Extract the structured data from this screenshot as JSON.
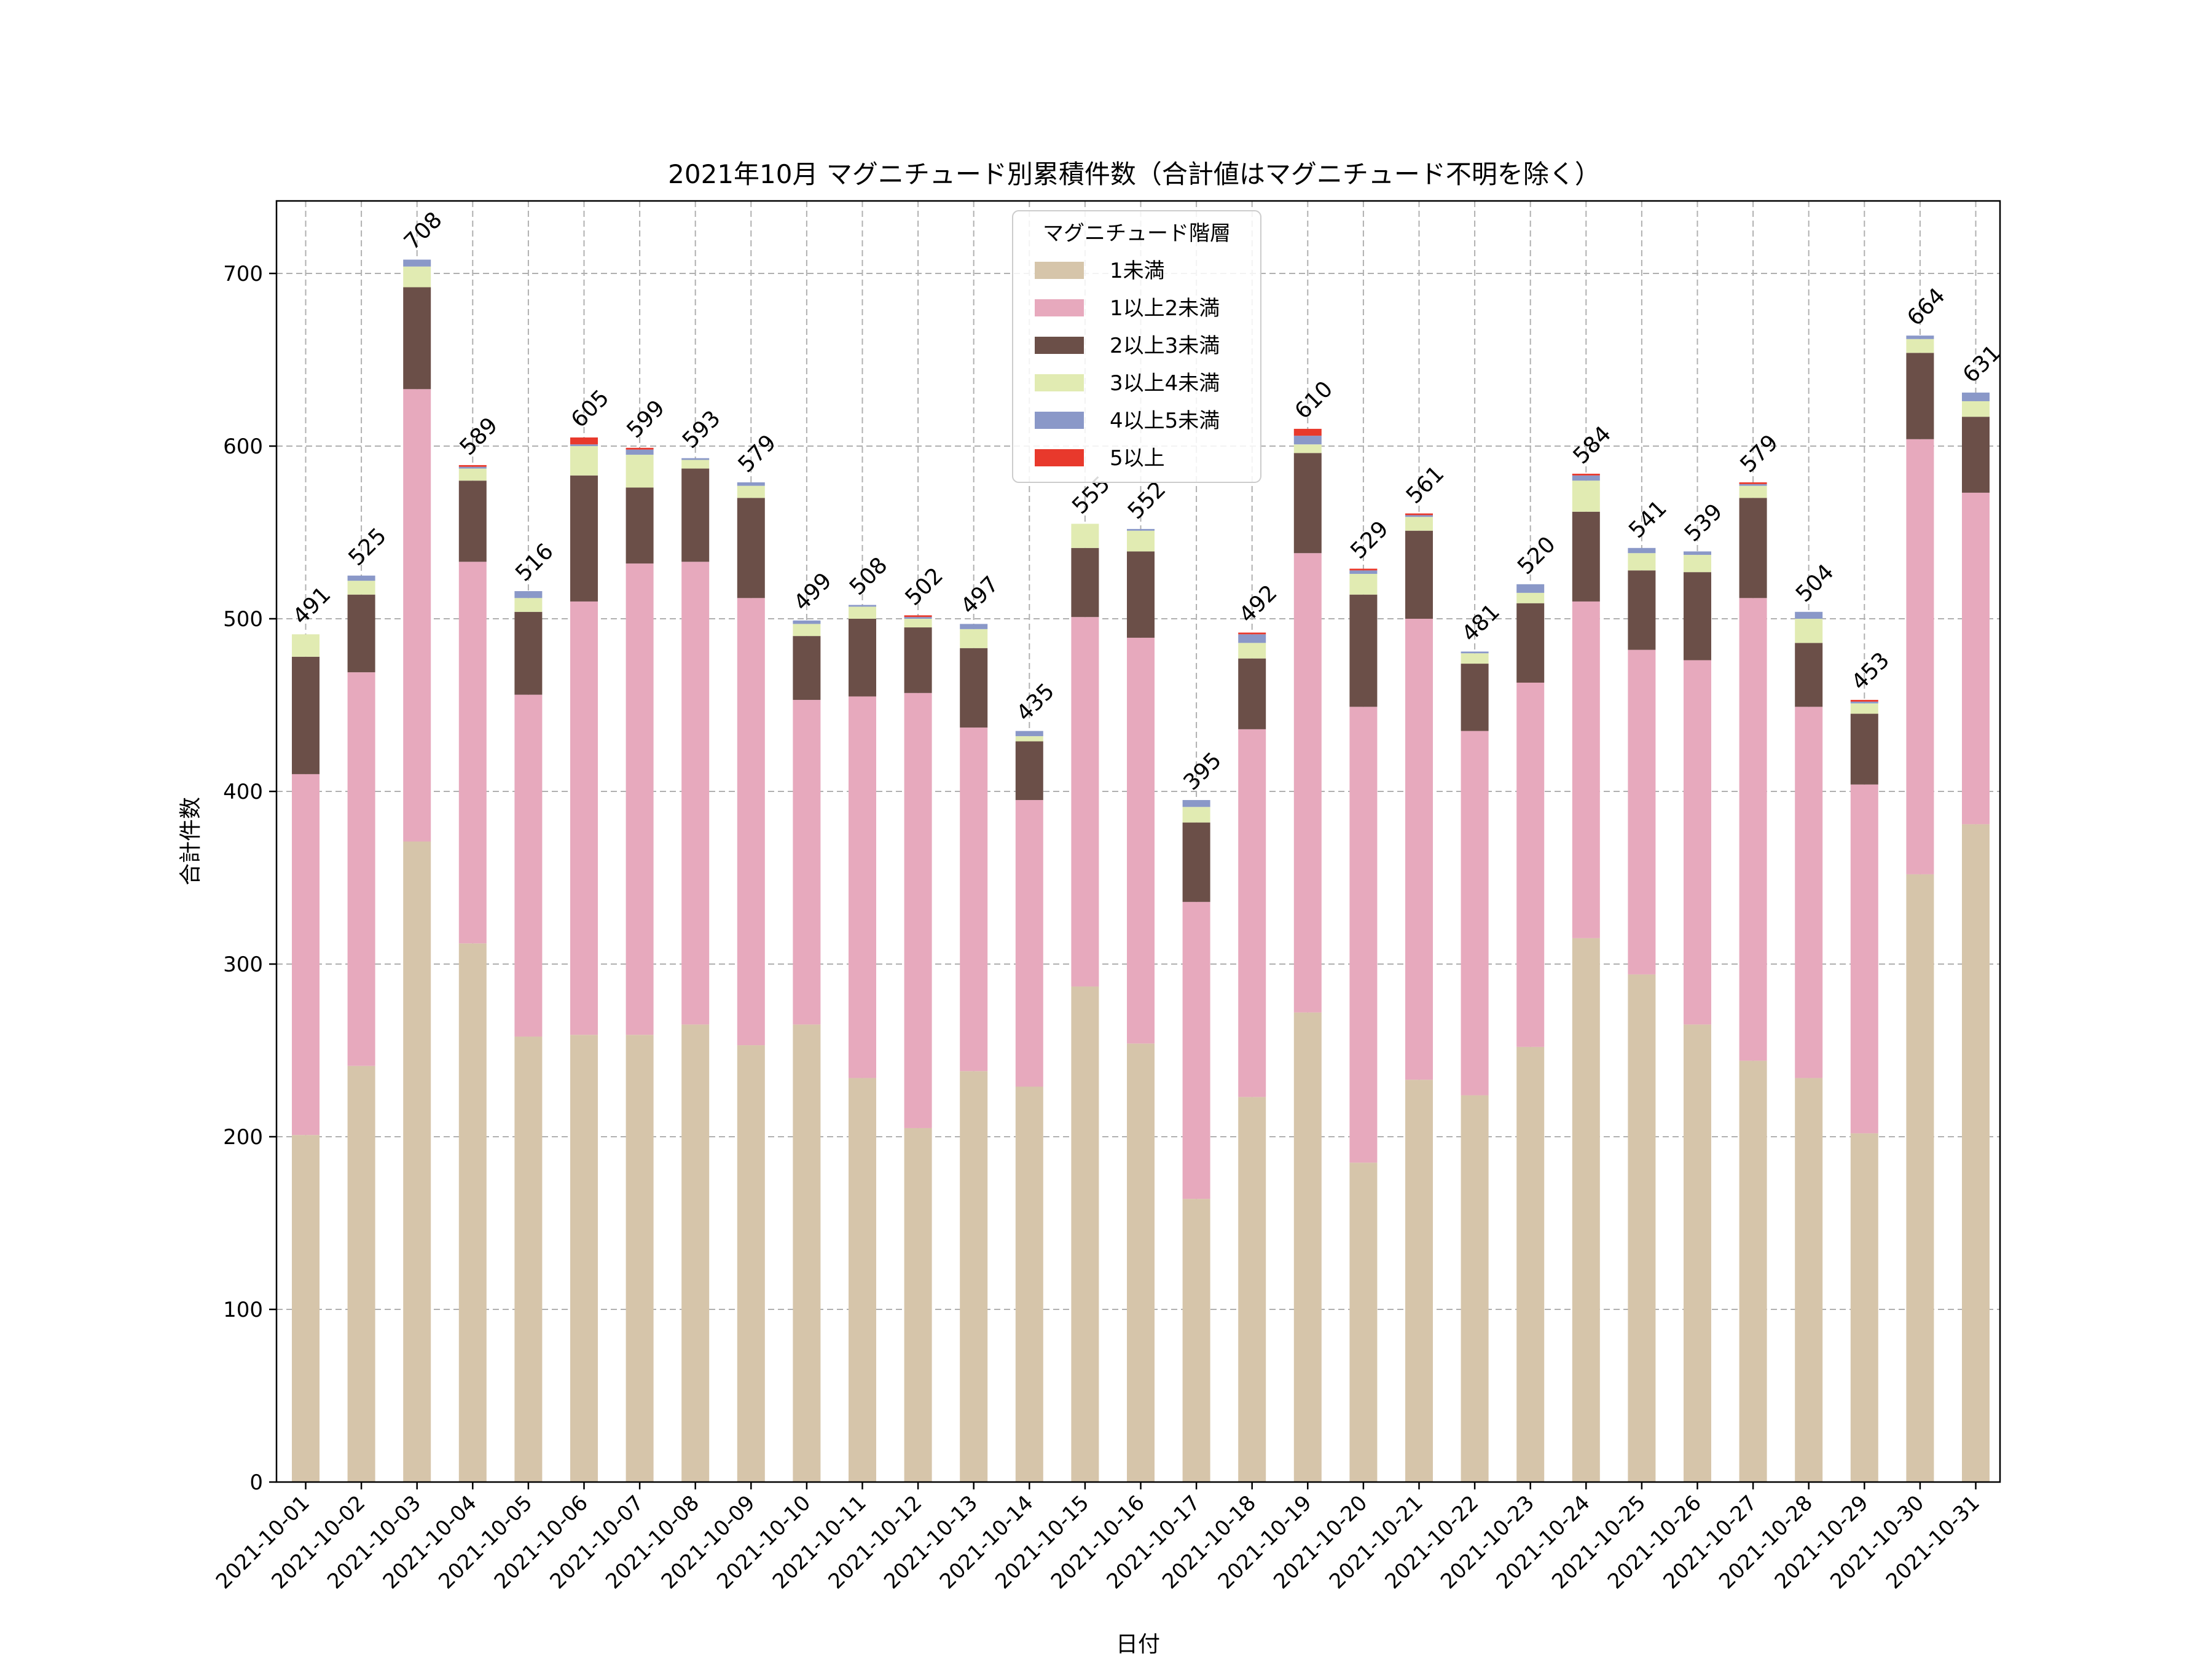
{
  "chart_data": {
    "type": "bar",
    "stacked": true,
    "title": "2021年10月 マグニチュード別累積件数（合計値はマグニチュード不明を除く）",
    "xlabel": "日付",
    "ylabel": "合計件数",
    "ylim": [
      0,
      742
    ],
    "yticks": [
      0,
      100,
      200,
      300,
      400,
      500,
      600,
      700
    ],
    "grid": true,
    "legend": {
      "title": "マグニチュード階層",
      "placement": "upper-center"
    },
    "categories": [
      "2021-10-01",
      "2021-10-02",
      "2021-10-03",
      "2021-10-04",
      "2021-10-05",
      "2021-10-06",
      "2021-10-07",
      "2021-10-08",
      "2021-10-09",
      "2021-10-10",
      "2021-10-11",
      "2021-10-12",
      "2021-10-13",
      "2021-10-14",
      "2021-10-15",
      "2021-10-16",
      "2021-10-17",
      "2021-10-18",
      "2021-10-19",
      "2021-10-20",
      "2021-10-21",
      "2021-10-22",
      "2021-10-23",
      "2021-10-24",
      "2021-10-25",
      "2021-10-26",
      "2021-10-27",
      "2021-10-28",
      "2021-10-29",
      "2021-10-30",
      "2021-10-31"
    ],
    "series": [
      {
        "name": "1未満",
        "color": "#d6c5aa",
        "values": [
          201,
          241,
          371,
          312,
          258,
          259,
          259,
          265,
          253,
          265,
          234,
          205,
          238,
          229,
          287,
          254,
          164,
          223,
          272,
          185,
          233,
          224,
          252,
          315,
          294,
          265,
          244,
          234,
          202,
          352,
          381
        ]
      },
      {
        "name": "1以上2未満",
        "color": "#e7a9bd",
        "values": [
          209,
          228,
          262,
          221,
          198,
          251,
          273,
          268,
          259,
          188,
          221,
          252,
          199,
          166,
          214,
          235,
          172,
          213,
          266,
          264,
          267,
          211,
          211,
          195,
          188,
          211,
          268,
          215,
          202,
          252,
          192
        ]
      },
      {
        "name": "2以上3未満",
        "color": "#6b4f48",
        "values": [
          68,
          45,
          59,
          47,
          48,
          73,
          44,
          54,
          58,
          37,
          45,
          38,
          46,
          34,
          40,
          50,
          46,
          41,
          58,
          65,
          51,
          39,
          46,
          52,
          46,
          51,
          58,
          37,
          41,
          50,
          44
        ]
      },
      {
        "name": "3以上4未満",
        "color": "#e1ebb2",
        "values": [
          13,
          8,
          12,
          7,
          8,
          17,
          19,
          5,
          7,
          7,
          7,
          5,
          11,
          3,
          14,
          12,
          9,
          9,
          5,
          12,
          8,
          6,
          6,
          18,
          10,
          10,
          7,
          14,
          6,
          8,
          9
        ]
      },
      {
        "name": "4以上5未満",
        "color": "#8a98c8",
        "values": [
          0,
          3,
          4,
          1,
          4,
          1,
          3,
          1,
          2,
          2,
          1,
          1,
          3,
          3,
          0,
          1,
          4,
          5,
          5,
          2,
          1,
          1,
          5,
          3,
          3,
          2,
          1,
          4,
          1,
          2,
          5
        ]
      },
      {
        "name": "5以上",
        "color": "#e8392c",
        "values": [
          0,
          0,
          0,
          1,
          0,
          4,
          1,
          0,
          0,
          0,
          0,
          1,
          0,
          0,
          0,
          0,
          0,
          1,
          4,
          1,
          1,
          0,
          0,
          1,
          0,
          0,
          1,
          0,
          1,
          0,
          0
        ]
      }
    ],
    "totals": [
      491,
      525,
      708,
      589,
      516,
      605,
      599,
      593,
      579,
      499,
      508,
      502,
      497,
      435,
      555,
      552,
      395,
      492,
      610,
      529,
      561,
      481,
      520,
      584,
      541,
      539,
      579,
      504,
      453,
      664,
      631
    ]
  }
}
